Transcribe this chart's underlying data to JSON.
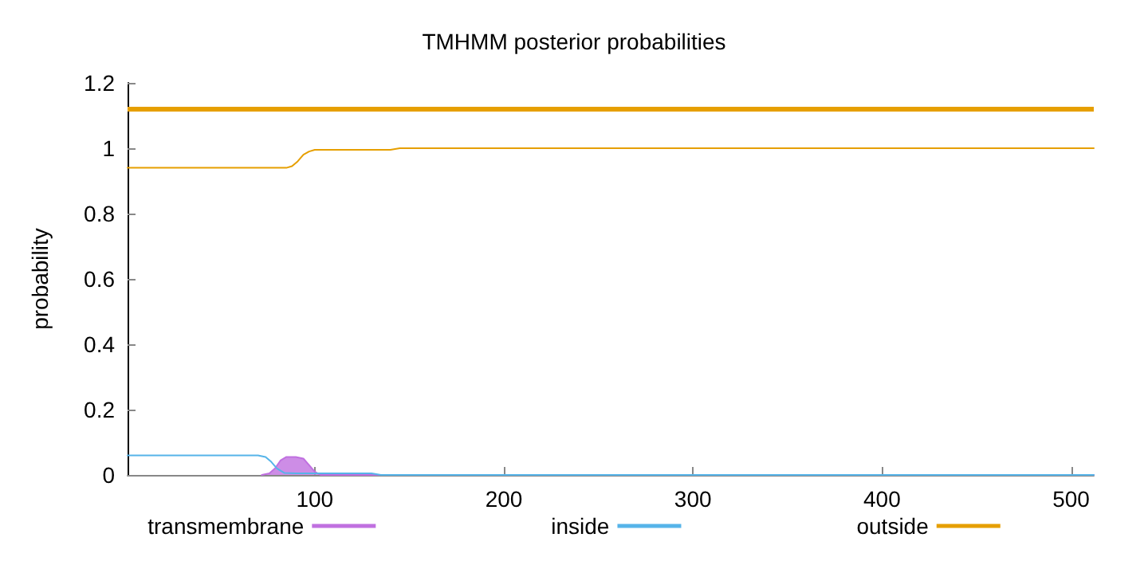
{
  "chart_data": {
    "type": "line",
    "title": "TMHMM posterior probabilities",
    "ylabel": "probability",
    "xlim": [
      1,
      512
    ],
    "xticks": [
      100,
      200,
      300,
      400,
      500
    ],
    "ylim": [
      0,
      1.2
    ],
    "yticks": [
      0,
      0.2,
      0.4,
      0.6,
      0.8,
      1,
      1.2
    ],
    "grid": false,
    "legend": "bottom",
    "marker": "none",
    "line_style": "solid",
    "ref_lines": [
      {
        "axis": "y",
        "value": 1.12,
        "color": "#e69f00"
      }
    ],
    "series": [
      {
        "name": "transmembrane",
        "type": "area",
        "color": "#c070e0",
        "x": [
          72,
          76,
          79,
          82,
          85,
          90,
          94,
          97,
          100,
          103,
          512
        ],
        "values": [
          0,
          0.005,
          0.02,
          0.045,
          0.055,
          0.055,
          0.05,
          0.03,
          0.01,
          0,
          0
        ]
      },
      {
        "name": "inside",
        "color": "#56b4e9",
        "x": [
          1,
          70,
          74,
          77,
          80,
          84,
          90,
          130,
          135,
          512
        ],
        "values": [
          0.06,
          0.06,
          0.055,
          0.04,
          0.02,
          0.006,
          0.005,
          0.005,
          0,
          0
        ]
      },
      {
        "name": "outside",
        "color": "#e69f00",
        "x": [
          1,
          85,
          88,
          91,
          94,
          97,
          100,
          105,
          140,
          145,
          512
        ],
        "values": [
          0.94,
          0.94,
          0.945,
          0.96,
          0.98,
          0.99,
          0.995,
          0.995,
          0.995,
          1,
          1
        ]
      }
    ]
  }
}
